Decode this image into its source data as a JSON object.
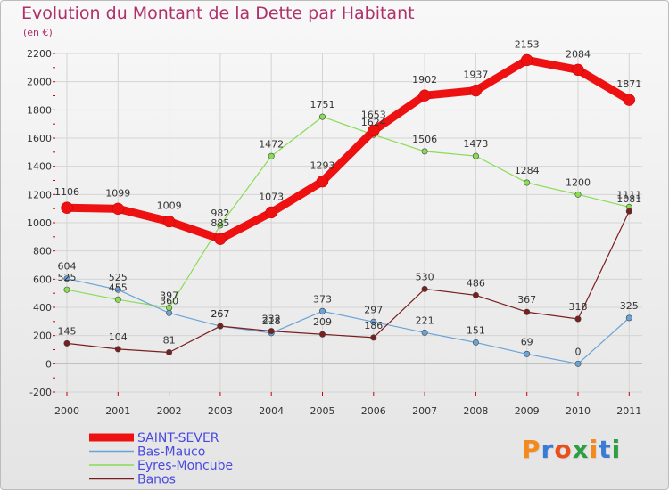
{
  "title": "Evolution du Montant de la Dette par Habitant",
  "subtitle": "(en €)",
  "brand": {
    "text": "Proxiti",
    "colors": [
      "#f28a1e",
      "#3a7bd5",
      "#e94e1b",
      "#2e9e44",
      "#f28a1e",
      "#3a7bd5",
      "#2e9e44"
    ]
  },
  "chart_data": {
    "type": "line",
    "title": "Evolution du Montant de la Dette par Habitant",
    "ylabel": "(en €)",
    "xlabel": "",
    "categories": [
      "2000",
      "2001",
      "2002",
      "2003",
      "2004",
      "2005",
      "2006",
      "2007",
      "2008",
      "2009",
      "2010",
      "2011"
    ],
    "ylim": [
      -200,
      2200
    ],
    "yticks": [
      -200,
      0,
      200,
      400,
      600,
      800,
      1000,
      1200,
      1400,
      1600,
      1800,
      2000,
      2200
    ],
    "grid": true,
    "legend_position": "bottom-left",
    "series": [
      {
        "name": "SAINT-SEVER",
        "color": "#ee1111",
        "values": [
          1106,
          1099,
          1009,
          885,
          1073,
          1293,
          1653,
          1902,
          1937,
          2153,
          2084,
          1871
        ]
      },
      {
        "name": "Bas-Mauco",
        "color": "#6aa3d8",
        "values": [
          604,
          525,
          360,
          267,
          218,
          373,
          297,
          221,
          151,
          69,
          0,
          325
        ]
      },
      {
        "name": "Eyres-Moncube",
        "color": "#88dd55",
        "values": [
          525,
          455,
          397,
          982,
          1472,
          1751,
          1624,
          1506,
          1473,
          1284,
          1200,
          1111
        ]
      },
      {
        "name": "Banos",
        "color": "#7a1f1f",
        "values": [
          145,
          104,
          81,
          267,
          232,
          209,
          186,
          530,
          486,
          367,
          318,
          1081
        ]
      }
    ]
  }
}
